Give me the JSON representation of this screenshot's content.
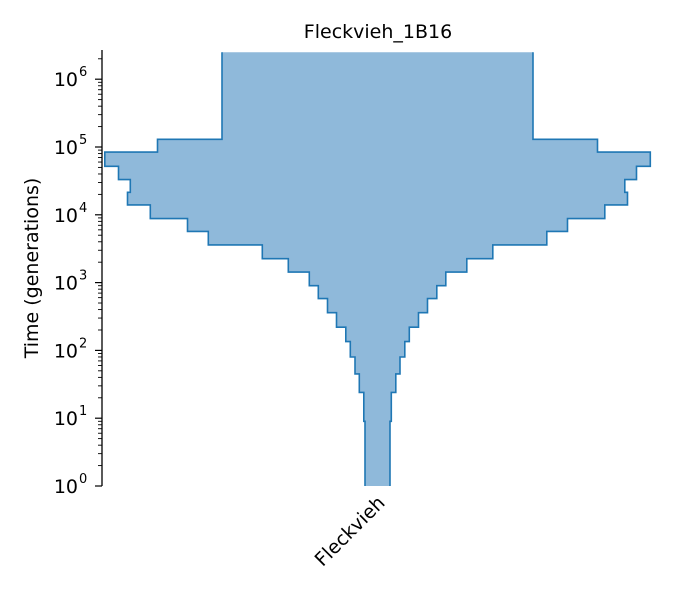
{
  "chart_data": {
    "type": "area",
    "title": "Fleckvieh_1B16",
    "xlabel": "",
    "ylabel": "Time (generations)",
    "yscale": "log",
    "ylim": [
      1,
      2500000
    ],
    "y_ticks": [
      {
        "value": 1,
        "base": "10",
        "exp": "0"
      },
      {
        "value": 10,
        "base": "10",
        "exp": "1"
      },
      {
        "value": 100,
        "base": "10",
        "exp": "2"
      },
      {
        "value": 1000,
        "base": "10",
        "exp": "3"
      },
      {
        "value": 10000,
        "base": "10",
        "exp": "4"
      },
      {
        "value": 100000,
        "base": "10",
        "exp": "5"
      },
      {
        "value": 1000000,
        "base": "10",
        "exp": "6"
      }
    ],
    "x_tick_labels": [
      "Fleckvieh"
    ],
    "grid": false,
    "legend": "none",
    "fill_color": "#8fb9da",
    "edge_color": "#1f77b4",
    "description_of_values": "Relative effective population size (demographic width) per time step, symmetric about the population axis",
    "series": [
      {
        "name": "Fleckvieh",
        "steps": [
          {
            "t_start": 1,
            "t_end": 9,
            "size": 0.05
          },
          {
            "t_start": 9,
            "t_end": 24,
            "size": 0.055
          },
          {
            "t_start": 24,
            "t_end": 45,
            "size": 0.073
          },
          {
            "t_start": 45,
            "t_end": 80,
            "size": 0.09
          },
          {
            "t_start": 80,
            "t_end": 135,
            "size": 0.109
          },
          {
            "t_start": 135,
            "t_end": 220,
            "size": 0.127
          },
          {
            "t_start": 220,
            "t_end": 360,
            "size": 0.164
          },
          {
            "t_start": 360,
            "t_end": 580,
            "size": 0.2
          },
          {
            "t_start": 580,
            "t_end": 900,
            "size": 0.237
          },
          {
            "t_start": 900,
            "t_end": 1430,
            "size": 0.273
          },
          {
            "t_start": 1430,
            "t_end": 2250,
            "size": 0.357
          },
          {
            "t_start": 2250,
            "t_end": 3600,
            "size": 0.461
          },
          {
            "t_start": 3600,
            "t_end": 5700,
            "size": 0.677
          },
          {
            "t_start": 5700,
            "t_end": 8800,
            "size": 0.76
          },
          {
            "t_start": 8800,
            "t_end": 14000,
            "size": 0.909
          },
          {
            "t_start": 14000,
            "t_end": 21500,
            "size": 1.0
          },
          {
            "t_start": 21500,
            "t_end": 33000,
            "size": 0.989
          },
          {
            "t_start": 33000,
            "t_end": 52000,
            "size": 1.036
          },
          {
            "t_start": 52000,
            "t_end": 84000,
            "size": 1.091
          },
          {
            "t_start": 84000,
            "t_end": 130000,
            "size": 0.88
          },
          {
            "t_start": 130000,
            "t_end": 2500000,
            "size": 0.622
          }
        ]
      }
    ]
  }
}
